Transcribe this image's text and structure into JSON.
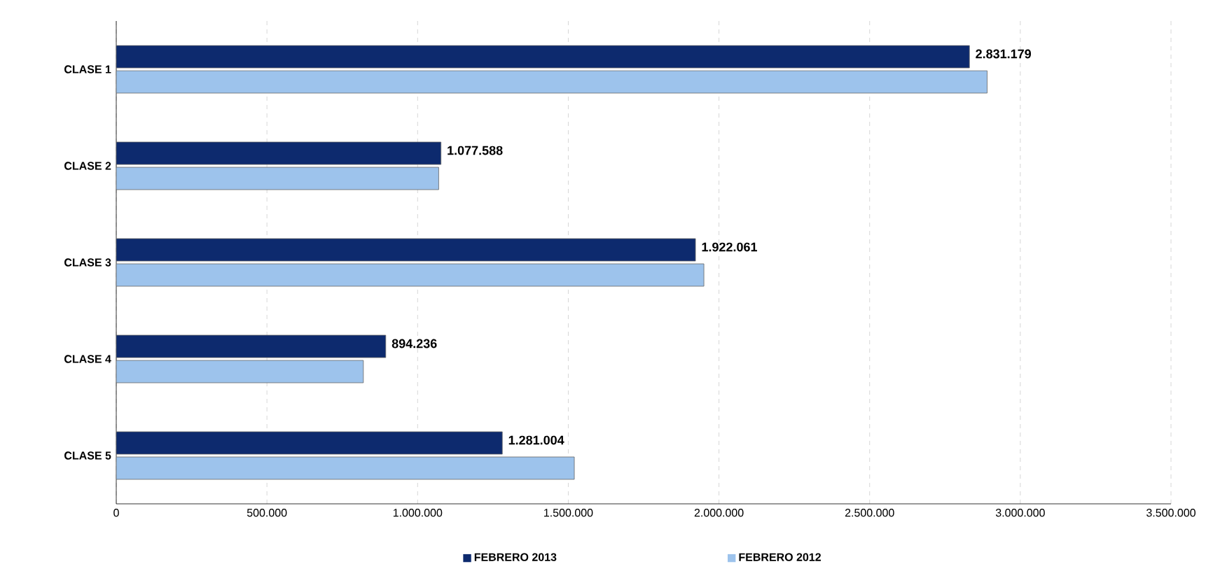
{
  "chart_data": {
    "type": "bar",
    "orientation": "horizontal",
    "categories": [
      "CLASE 1",
      "CLASE 2",
      "CLASE 3",
      "CLASE 4",
      "CLASE 5"
    ],
    "series": [
      {
        "name": "FEBRERO 2013",
        "color": "#0d2a6e",
        "values": [
          2831179,
          1077588,
          1922061,
          894236,
          1281004
        ],
        "value_labels": [
          "2.831.179",
          "1.077.588",
          "1.922.061",
          "894.236",
          "1.281.004"
        ]
      },
      {
        "name": "FEBRERO 2012",
        "color": "#9dc3ec",
        "values": [
          2890000,
          1070000,
          1950000,
          820000,
          1520000
        ]
      }
    ],
    "xlim": [
      0,
      3500000
    ],
    "xticks": [
      0,
      {
        "value": 500000,
        "label": "500.000"
      },
      {
        "value": 1000000,
        "label": "1.000.000"
      },
      {
        "value": 1500000,
        "label": "1.500.000"
      },
      {
        "value": 2000000,
        "label": "2.000.000"
      },
      {
        "value": 2500000,
        "label": "2.500.000"
      },
      {
        "value": 3000000,
        "label": "3.000.000"
      },
      {
        "value": 3500000,
        "label": "3.500.000"
      }
    ],
    "grid": "x",
    "legend": "bottom"
  }
}
